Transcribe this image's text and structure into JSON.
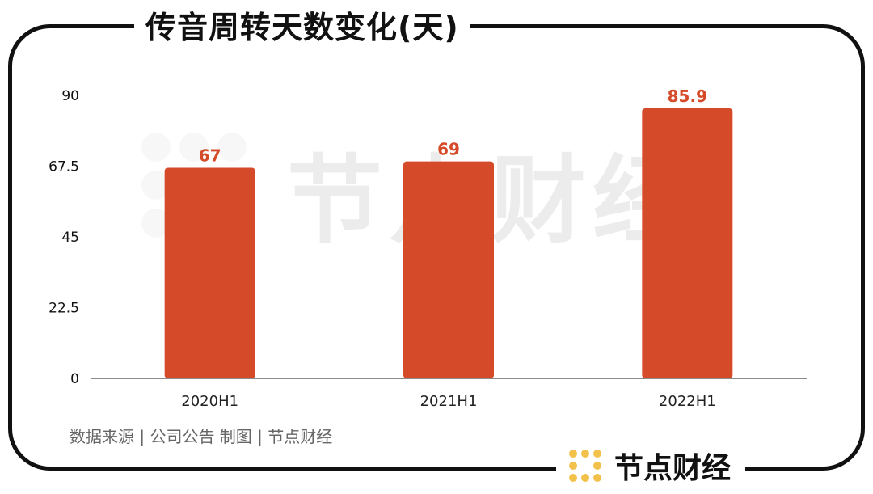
{
  "header": {
    "title": "传音周转天数变化(天)"
  },
  "footer": {
    "source": "数据来源 | 公司公告   制图 | 节点财经"
  },
  "brand": {
    "name": "节点财经",
    "logo_icon": "node-dots-logo"
  },
  "watermark": {
    "text": "节点财经"
  },
  "colors": {
    "bar": "#D54A28",
    "label": "#D54A28",
    "frame": "#111111",
    "axis": "#666666",
    "grid_text": "#111111",
    "logo": "#F2C14B",
    "watermark": "#ECECEC"
  },
  "chart_data": {
    "type": "bar",
    "categories": [
      "2020H1",
      "2021H1",
      "2022H1"
    ],
    "values": [
      67,
      69,
      85.9
    ],
    "title": "传音周转天数变化(天)",
    "xlabel": "",
    "ylabel": "",
    "ylim": [
      0,
      90
    ],
    "yticks": [
      0,
      22.5,
      45,
      67.5,
      90
    ],
    "ytick_labels": [
      "0",
      "22.5",
      "45",
      "67.5",
      "90"
    ],
    "data_labels": [
      "67",
      "69",
      "85.9"
    ],
    "grid": false,
    "legend": "none"
  }
}
